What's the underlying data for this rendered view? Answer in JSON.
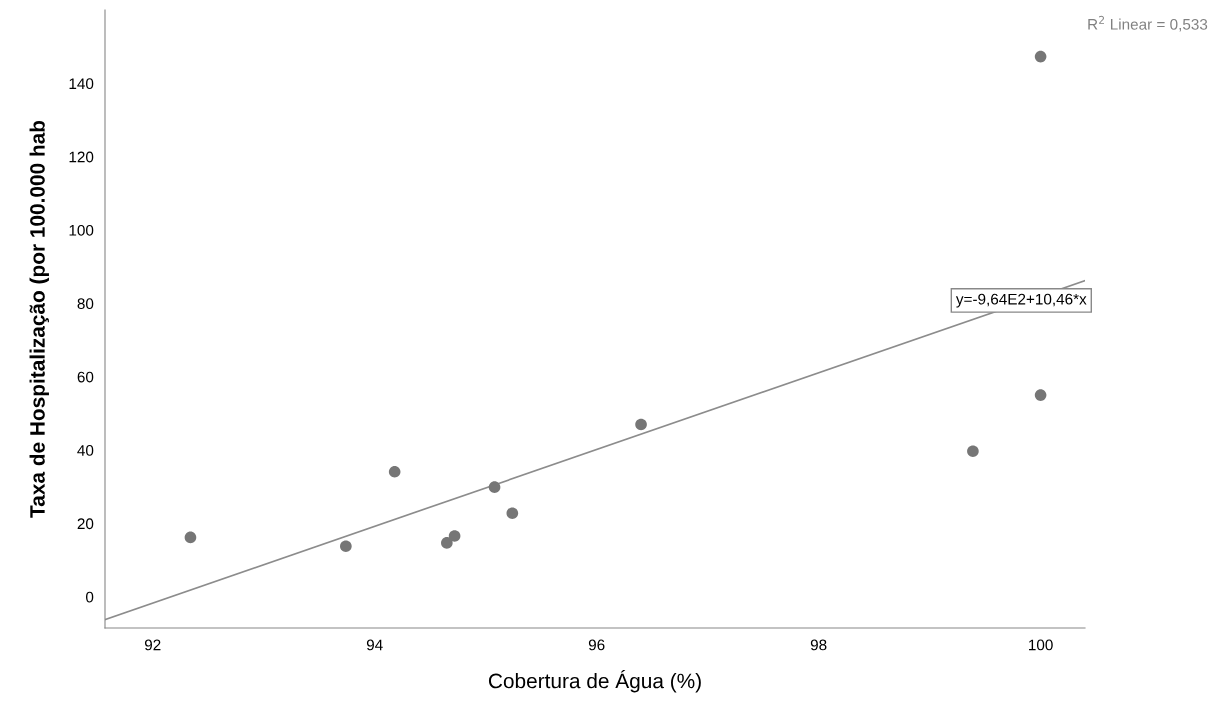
{
  "chart_data": {
    "type": "scatter",
    "xlabel": "Cobertura de Água (%)",
    "ylabel": "Taxa de Hospitalização (por 100.000 hab",
    "annotations": [
      "R$^{2}$ Linear = 0,533",
      "y=-9,64E2+10,46*x"
    ],
    "xlim": [
      91.57,
      100.4
    ],
    "ylim": [
      -8.5,
      160
    ],
    "xticks": [
      92,
      94,
      96,
      98,
      100
    ],
    "yticks": [
      0,
      20,
      40,
      60,
      80,
      100,
      120,
      140
    ],
    "grid": false,
    "legend": false,
    "series": [
      {
        "marker": "circle",
        "color": "#767676",
        "x": [
          92.34,
          93.74,
          94.18,
          94.65,
          94.72,
          95.08,
          95.24,
          96.4,
          100.0,
          100.0,
          99.39
        ],
        "values": [
          16.2,
          13.8,
          34.1,
          14.7,
          16.6,
          29.9,
          22.8,
          47.0,
          147.3,
          55.0,
          39.7
        ]
      },
      {
        "type": "line",
        "marker": "none",
        "color": "#8c8c8c",
        "line_style": "solid",
        "x": [
          91.57,
          100.4
        ],
        "values": [
          -6.2,
          86.2
        ]
      }
    ]
  }
}
